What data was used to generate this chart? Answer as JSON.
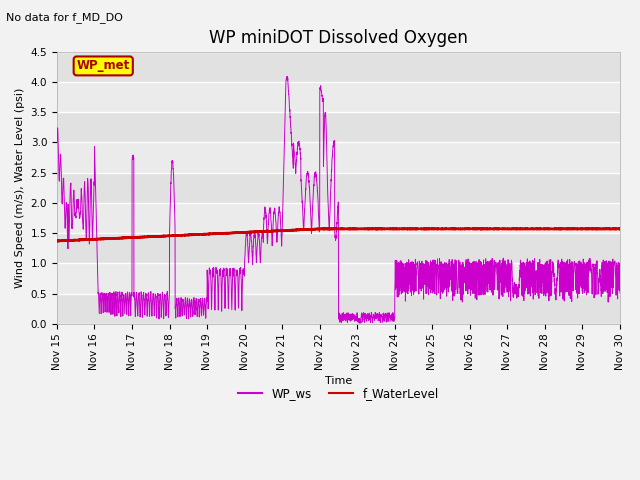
{
  "title": "WP miniDOT Dissolved Oxygen",
  "subtitle": "No data for f_MD_DO",
  "xlabel": "Time",
  "ylabel": "Wind Speed (m/s), Water Level (psi)",
  "ylim": [
    0.0,
    4.5
  ],
  "xlim_days": [
    15,
    30
  ],
  "legend_entries": [
    "WP_ws",
    "f_WaterLevel"
  ],
  "wp_met_label": "WP_met",
  "wp_met_bg": "#ffff00",
  "wp_met_border": "#aa0000",
  "wp_met_text": "#aa0000",
  "line_color_ws": "#cc00cc",
  "line_color_wl": "#cc0000",
  "background_inner": "#ebebeb",
  "background_outer": "#f2f2f2",
  "grid_color": "#ffffff",
  "title_fontsize": 12,
  "label_fontsize": 8,
  "tick_fontsize": 7.5,
  "subtitle_fontsize": 8,
  "yticks": [
    0.0,
    0.5,
    1.0,
    1.5,
    2.0,
    2.5,
    3.0,
    3.5,
    4.0,
    4.5
  ],
  "xtick_labels": [
    "Nov 15",
    "Nov 16",
    "Nov 17",
    "Nov 18",
    "Nov 19",
    "Nov 20",
    "Nov 21",
    "Nov 22",
    "Nov 23",
    "Nov 24",
    "Nov 25",
    "Nov 26",
    "Nov 27",
    "Nov 28",
    "Nov 29",
    "Nov 30"
  ],
  "xtick_positions": [
    15,
    16,
    17,
    18,
    19,
    20,
    21,
    22,
    23,
    24,
    25,
    26,
    27,
    28,
    29,
    30
  ]
}
